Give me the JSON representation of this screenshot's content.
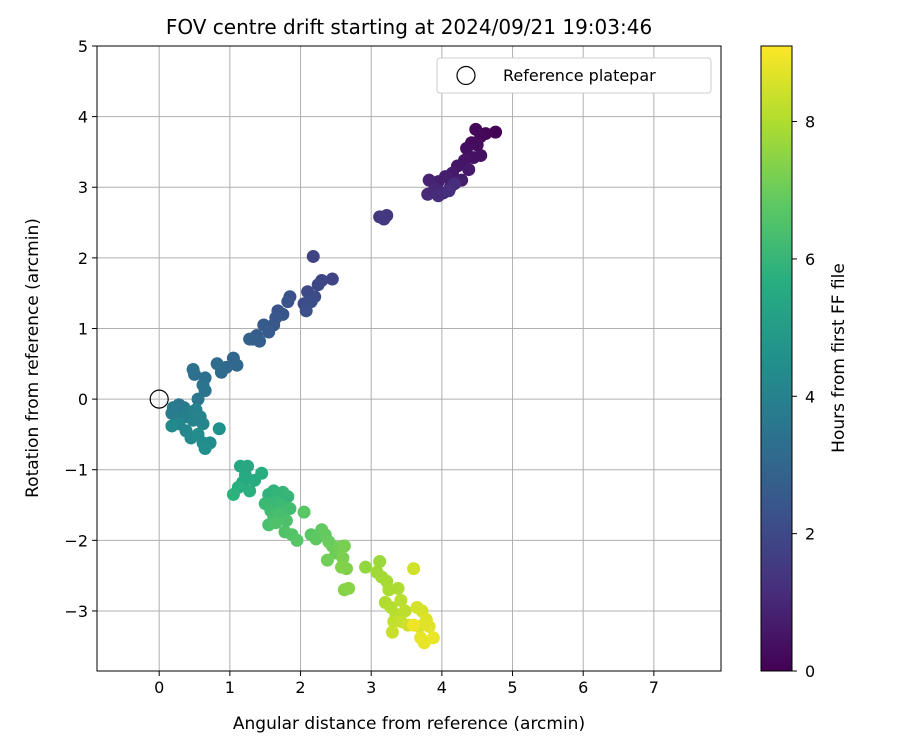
{
  "chart_data": {
    "type": "scatter",
    "title": "FOV centre drift starting at 2024/09/21 19:03:46",
    "xlabel": "Angular distance from reference (arcmin)",
    "ylabel": "Rotation from reference (arcmin)",
    "xlim": [
      -0.88,
      7.95
    ],
    "ylim": [
      -3.85,
      5.0
    ],
    "xticks": [
      "0",
      "1",
      "2",
      "3",
      "4",
      "5",
      "6",
      "7"
    ],
    "yticks": [
      "−3",
      "−2",
      "−1",
      "0",
      "1",
      "2",
      "3",
      "4",
      "5"
    ],
    "grid": true,
    "legend": {
      "position": "top-right",
      "entries": [
        "Reference platepar"
      ]
    },
    "colorbar": {
      "label": "Hours from first FF file",
      "colormap": "viridis",
      "range": [
        0,
        9.1
      ],
      "ticks": [
        "0",
        "2",
        "4",
        "6",
        "8"
      ]
    },
    "reference_point": {
      "x": 0,
      "y": 0
    },
    "series": [
      {
        "marker": "filled-circle",
        "points": [
          [
            4.76,
            3.78,
            0.05
          ],
          [
            4.62,
            3.76,
            0.1
          ],
          [
            4.48,
            3.82,
            0.15
          ],
          [
            4.55,
            3.72,
            0.2
          ],
          [
            4.42,
            3.63,
            0.25
          ],
          [
            4.5,
            3.6,
            0.3
          ],
          [
            4.35,
            3.55,
            0.35
          ],
          [
            4.55,
            3.45,
            0.4
          ],
          [
            4.45,
            3.42,
            0.45
          ],
          [
            4.32,
            3.38,
            0.5
          ],
          [
            4.22,
            3.3,
            0.55
          ],
          [
            4.38,
            3.25,
            0.6
          ],
          [
            4.15,
            3.2,
            0.65
          ],
          [
            4.28,
            3.1,
            0.7
          ],
          [
            4.05,
            3.15,
            0.75
          ],
          [
            3.95,
            3.08,
            0.8
          ],
          [
            4.12,
            3.0,
            0.85
          ],
          [
            3.82,
            3.1,
            0.9
          ],
          [
            3.9,
            2.98,
            0.95
          ],
          [
            4.02,
            2.92,
            1.0
          ],
          [
            3.8,
            2.9,
            1.05
          ],
          [
            3.95,
            2.88,
            1.1
          ],
          [
            4.18,
            3.05,
            1.15
          ],
          [
            4.1,
            2.95,
            1.2
          ],
          [
            3.22,
            2.6,
            1.4
          ],
          [
            3.12,
            2.58,
            1.45
          ],
          [
            3.18,
            2.55,
            1.5
          ],
          [
            2.18,
            2.02,
            1.8
          ],
          [
            2.45,
            1.7,
            1.85
          ],
          [
            2.3,
            1.68,
            1.9
          ],
          [
            2.25,
            1.62,
            1.95
          ],
          [
            2.1,
            1.52,
            2.0
          ],
          [
            2.2,
            1.45,
            2.05
          ],
          [
            2.05,
            1.35,
            2.1
          ],
          [
            2.15,
            1.38,
            2.15
          ],
          [
            2.08,
            1.25,
            2.2
          ],
          [
            1.85,
            1.45,
            2.25
          ],
          [
            1.82,
            1.38,
            2.3
          ],
          [
            1.68,
            1.25,
            2.35
          ],
          [
            1.75,
            1.2,
            2.4
          ],
          [
            1.65,
            1.15,
            2.45
          ],
          [
            1.62,
            1.05,
            2.5
          ],
          [
            1.48,
            1.05,
            2.55
          ],
          [
            1.55,
            0.95,
            2.6
          ],
          [
            1.38,
            0.9,
            2.65
          ],
          [
            1.32,
            0.85,
            2.7
          ],
          [
            1.42,
            0.82,
            2.75
          ],
          [
            1.28,
            0.85,
            2.8
          ],
          [
            1.05,
            0.58,
            3.0
          ],
          [
            1.1,
            0.48,
            3.05
          ],
          [
            0.95,
            0.45,
            3.1
          ],
          [
            0.88,
            0.38,
            3.15
          ],
          [
            0.82,
            0.5,
            3.2
          ],
          [
            0.65,
            0.3,
            3.3
          ],
          [
            0.5,
            0.35,
            3.35
          ],
          [
            0.48,
            0.42,
            3.4
          ],
          [
            0.62,
            0.2,
            3.45
          ],
          [
            0.65,
            0.12,
            3.5
          ],
          [
            0.55,
            0.0,
            3.55
          ],
          [
            0.28,
            -0.08,
            3.6
          ],
          [
            0.35,
            -0.12,
            3.65
          ],
          [
            0.2,
            -0.12,
            3.7
          ],
          [
            0.18,
            -0.2,
            3.75
          ],
          [
            0.25,
            -0.25,
            3.8
          ],
          [
            0.38,
            -0.25,
            3.85
          ],
          [
            0.42,
            -0.18,
            3.9
          ],
          [
            0.52,
            -0.15,
            3.95
          ],
          [
            0.48,
            -0.3,
            4.0
          ],
          [
            0.58,
            -0.25,
            4.05
          ],
          [
            0.62,
            -0.35,
            4.1
          ],
          [
            0.28,
            -0.35,
            4.15
          ],
          [
            0.38,
            -0.45,
            4.2
          ],
          [
            0.45,
            -0.55,
            4.25
          ],
          [
            0.18,
            -0.38,
            4.3
          ],
          [
            0.55,
            -0.5,
            4.35
          ],
          [
            0.62,
            -0.62,
            4.4
          ],
          [
            0.72,
            -0.62,
            4.45
          ],
          [
            0.65,
            -0.7,
            4.5
          ],
          [
            0.85,
            -0.42,
            4.55
          ],
          [
            1.15,
            -0.95,
            5.4
          ],
          [
            1.25,
            -0.95,
            5.45
          ],
          [
            1.22,
            -1.08,
            5.5
          ],
          [
            1.18,
            -1.18,
            5.55
          ],
          [
            1.35,
            -1.15,
            5.6
          ],
          [
            1.45,
            -1.05,
            5.65
          ],
          [
            1.12,
            -1.25,
            5.7
          ],
          [
            1.28,
            -1.3,
            5.75
          ],
          [
            1.05,
            -1.35,
            5.8
          ],
          [
            1.55,
            -1.35,
            5.85
          ],
          [
            1.62,
            -1.3,
            5.9
          ],
          [
            1.75,
            -1.32,
            5.95
          ],
          [
            1.82,
            -1.38,
            6.0
          ],
          [
            1.65,
            -1.45,
            6.05
          ],
          [
            1.5,
            -1.48,
            6.1
          ],
          [
            1.72,
            -1.5,
            6.15
          ],
          [
            1.58,
            -1.58,
            6.2
          ],
          [
            1.85,
            -1.55,
            6.25
          ],
          [
            1.62,
            -1.65,
            6.3
          ],
          [
            1.72,
            -1.62,
            6.35
          ],
          [
            1.55,
            -1.78,
            6.4
          ],
          [
            1.8,
            -1.72,
            6.45
          ],
          [
            1.65,
            -1.75,
            6.5
          ],
          [
            1.78,
            -1.88,
            6.55
          ],
          [
            1.88,
            -1.92,
            6.6
          ],
          [
            1.95,
            -2.0,
            6.65
          ],
          [
            2.05,
            -1.6,
            6.7
          ],
          [
            2.15,
            -1.92,
            6.75
          ],
          [
            2.22,
            -1.98,
            6.8
          ],
          [
            2.3,
            -1.85,
            6.85
          ],
          [
            2.35,
            -1.92,
            6.9
          ],
          [
            2.4,
            -2.02,
            6.95
          ],
          [
            2.45,
            -2.08,
            7.0
          ],
          [
            2.5,
            -2.18,
            7.05
          ],
          [
            2.38,
            -2.28,
            7.1
          ],
          [
            2.55,
            -2.1,
            7.15
          ],
          [
            2.62,
            -2.08,
            7.2
          ],
          [
            2.6,
            -2.25,
            7.25
          ],
          [
            2.65,
            -2.4,
            7.3
          ],
          [
            2.58,
            -2.38,
            7.35
          ],
          [
            2.62,
            -2.7,
            7.4
          ],
          [
            2.68,
            -2.68,
            7.45
          ],
          [
            2.92,
            -2.38,
            7.6
          ],
          [
            3.12,
            -2.3,
            7.7
          ],
          [
            3.08,
            -2.45,
            7.75
          ],
          [
            3.15,
            -2.52,
            7.8
          ],
          [
            3.22,
            -2.58,
            7.85
          ],
          [
            3.25,
            -2.7,
            7.9
          ],
          [
            3.38,
            -2.68,
            7.95
          ],
          [
            3.2,
            -2.88,
            8.0
          ],
          [
            3.28,
            -2.95,
            8.05
          ],
          [
            3.35,
            -3.05,
            8.1
          ],
          [
            3.42,
            -2.85,
            8.15
          ],
          [
            3.48,
            -3.0,
            8.2
          ],
          [
            3.32,
            -3.15,
            8.25
          ],
          [
            3.42,
            -3.15,
            8.3
          ],
          [
            3.3,
            -3.3,
            8.35
          ],
          [
            3.52,
            -3.2,
            8.4
          ],
          [
            3.6,
            -2.4,
            8.45
          ],
          [
            3.65,
            -2.95,
            8.5
          ],
          [
            3.72,
            -3.0,
            8.55
          ],
          [
            3.68,
            -3.22,
            8.6
          ],
          [
            3.78,
            -3.12,
            8.65
          ],
          [
            3.82,
            -3.22,
            8.7
          ],
          [
            3.7,
            -3.38,
            8.75
          ],
          [
            3.75,
            -3.45,
            8.8
          ],
          [
            3.88,
            -3.38,
            8.85
          ],
          [
            3.6,
            -3.2,
            8.9
          ]
        ]
      }
    ]
  }
}
